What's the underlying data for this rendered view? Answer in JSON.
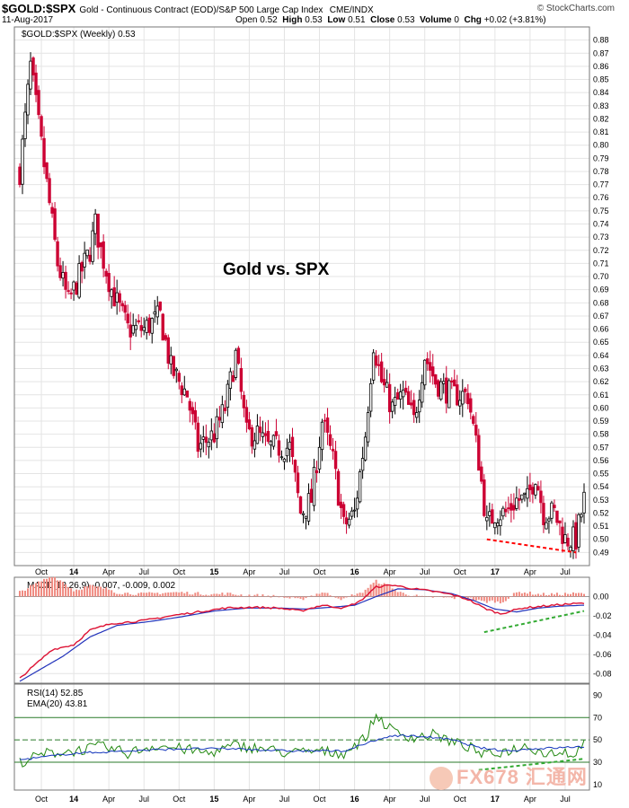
{
  "header": {
    "symbol": "$GOLD:$SPX",
    "description": "Gold - Continuous Contract (EOD)/S&P 500 Large Cap Index",
    "exchange": "CME/INDX",
    "date": "11-Aug-2017",
    "open_label": "Open",
    "open": "0.52",
    "high_label": "High",
    "high": "0.53",
    "low_label": "Low",
    "low": "0.51",
    "close_label": "Close",
    "close": "0.53",
    "volume_label": "Volume",
    "volume": "0",
    "chg_label": "Chg",
    "chg": "+0.02 (+3.81%)",
    "credit": "© StockCharts.com"
  },
  "watermark": "FX678 汇通网",
  "colors": {
    "up": "#000000",
    "down": "#cc0033",
    "macd_line": "#2233bb",
    "signal_line": "#dd1133",
    "rsi": "#228811",
    "ema": "#1133bb",
    "trend_red": "#ff0000",
    "trend_green": "#33aa33"
  },
  "chart_data": [
    {
      "type": "candlestick",
      "legend": "$GOLD:$SPX (Weekly) 0.53",
      "annotation": "Gold vs. SPX",
      "ylim": [
        0.48,
        0.89
      ],
      "yticks": [
        "0.88",
        "0.87",
        "0.86",
        "0.85",
        "0.84",
        "0.83",
        "0.82",
        "0.81",
        "0.80",
        "0.79",
        "0.78",
        "0.77",
        "0.76",
        "0.75",
        "0.74",
        "0.73",
        "0.72",
        "0.71",
        "0.70",
        "0.69",
        "0.68",
        "0.67",
        "0.66",
        "0.65",
        "0.64",
        "0.63",
        "0.62",
        "0.61",
        "0.60",
        "0.59",
        "0.58",
        "0.57",
        "0.56",
        "0.55",
        "0.54",
        "0.53",
        "0.52",
        "0.51",
        "0.50",
        "0.49"
      ],
      "x_labels": [
        "Oct",
        "14",
        "Apr",
        "Jul",
        "Oct",
        "15",
        "Apr",
        "Jul",
        "Oct",
        "16",
        "Apr",
        "Jul",
        "Oct",
        "17",
        "Apr",
        "Jul"
      ],
      "x_label_weeks": [
        8,
        20,
        33,
        46,
        59,
        72,
        85,
        98,
        111,
        124,
        137,
        150,
        163,
        176,
        189,
        202
      ],
      "weeks": 210,
      "anchors": [
        [
          0,
          0.78
        ],
        [
          4,
          0.86
        ],
        [
          6,
          0.83
        ],
        [
          10,
          0.77
        ],
        [
          14,
          0.71
        ],
        [
          18,
          0.68
        ],
        [
          22,
          0.7
        ],
        [
          26,
          0.72
        ],
        [
          28,
          0.74
        ],
        [
          30,
          0.72
        ],
        [
          34,
          0.69
        ],
        [
          40,
          0.66
        ],
        [
          46,
          0.66
        ],
        [
          52,
          0.67
        ],
        [
          56,
          0.63
        ],
        [
          62,
          0.61
        ],
        [
          66,
          0.57
        ],
        [
          72,
          0.58
        ],
        [
          76,
          0.6
        ],
        [
          80,
          0.64
        ],
        [
          84,
          0.58
        ],
        [
          88,
          0.58
        ],
        [
          92,
          0.57
        ],
        [
          100,
          0.57
        ],
        [
          104,
          0.52
        ],
        [
          108,
          0.53
        ],
        [
          112,
          0.59
        ],
        [
          116,
          0.56
        ],
        [
          120,
          0.51
        ],
        [
          124,
          0.52
        ],
        [
          128,
          0.58
        ],
        [
          131,
          0.65
        ],
        [
          134,
          0.62
        ],
        [
          138,
          0.6
        ],
        [
          142,
          0.61
        ],
        [
          146,
          0.59
        ],
        [
          150,
          0.64
        ],
        [
          154,
          0.62
        ],
        [
          160,
          0.61
        ],
        [
          166,
          0.61
        ],
        [
          170,
          0.56
        ],
        [
          173,
          0.51
        ],
        [
          176,
          0.52
        ],
        [
          180,
          0.52
        ],
        [
          184,
          0.53
        ],
        [
          188,
          0.53
        ],
        [
          191,
          0.55
        ],
        [
          194,
          0.52
        ],
        [
          198,
          0.52
        ],
        [
          202,
          0.5
        ],
        [
          206,
          0.5
        ],
        [
          209,
          0.53
        ]
      ],
      "trendline_red": [
        [
          173,
          0.5
        ],
        [
          206,
          0.49
        ]
      ]
    },
    {
      "type": "line",
      "legend": "MACD(12,26,9) -0.007, -0.009, 0.002",
      "ylim": [
        -0.09,
        0.02
      ],
      "yticks": [
        "0.00",
        "-0.02",
        "-0.04",
        "-0.06",
        "-0.08"
      ],
      "macd_anchors": [
        [
          0,
          -0.085
        ],
        [
          6,
          -0.07
        ],
        [
          12,
          -0.055
        ],
        [
          20,
          -0.05
        ],
        [
          26,
          -0.035
        ],
        [
          34,
          -0.028
        ],
        [
          46,
          -0.025
        ],
        [
          56,
          -0.02
        ],
        [
          66,
          -0.016
        ],
        [
          76,
          -0.012
        ],
        [
          86,
          -0.011
        ],
        [
          96,
          -0.012
        ],
        [
          104,
          -0.015
        ],
        [
          112,
          -0.009
        ],
        [
          120,
          -0.012
        ],
        [
          126,
          -0.005
        ],
        [
          132,
          0.01
        ],
        [
          138,
          0.012
        ],
        [
          146,
          0.008
        ],
        [
          154,
          0.005
        ],
        [
          160,
          0.002
        ],
        [
          166,
          -0.003
        ],
        [
          172,
          -0.012
        ],
        [
          178,
          -0.018
        ],
        [
          186,
          -0.012
        ],
        [
          194,
          -0.01
        ],
        [
          202,
          -0.008
        ],
        [
          209,
          -0.007
        ]
      ],
      "signal_anchors": [
        [
          0,
          -0.088
        ],
        [
          8,
          -0.075
        ],
        [
          16,
          -0.062
        ],
        [
          26,
          -0.042
        ],
        [
          36,
          -0.03
        ],
        [
          48,
          -0.026
        ],
        [
          60,
          -0.021
        ],
        [
          72,
          -0.015
        ],
        [
          84,
          -0.012
        ],
        [
          96,
          -0.012
        ],
        [
          106,
          -0.013
        ],
        [
          116,
          -0.011
        ],
        [
          124,
          -0.009
        ],
        [
          132,
          0.0
        ],
        [
          140,
          0.008
        ],
        [
          150,
          0.007
        ],
        [
          160,
          0.003
        ],
        [
          168,
          -0.004
        ],
        [
          176,
          -0.013
        ],
        [
          184,
          -0.016
        ],
        [
          192,
          -0.012
        ],
        [
          200,
          -0.01
        ],
        [
          209,
          -0.009
        ]
      ],
      "trendline_green": [
        [
          172,
          -0.037
        ],
        [
          209,
          -0.015
        ]
      ]
    },
    {
      "type": "line",
      "legend_rsi": "RSI(14) 52.85",
      "legend_ema": "EMA(20) 43.81",
      "ylim": [
        5,
        100
      ],
      "yticks": [
        "90",
        "70",
        "50",
        "30",
        "10"
      ],
      "levels": [
        70,
        50,
        30
      ],
      "rsi_anchors": [
        [
          0,
          30
        ],
        [
          10,
          38
        ],
        [
          20,
          40
        ],
        [
          30,
          44
        ],
        [
          40,
          38
        ],
        [
          50,
          45
        ],
        [
          60,
          42
        ],
        [
          70,
          38
        ],
        [
          80,
          45
        ],
        [
          90,
          42
        ],
        [
          100,
          38
        ],
        [
          110,
          40
        ],
        [
          120,
          38
        ],
        [
          128,
          52
        ],
        [
          132,
          72
        ],
        [
          138,
          58
        ],
        [
          146,
          52
        ],
        [
          154,
          55
        ],
        [
          160,
          48
        ],
        [
          166,
          44
        ],
        [
          172,
          36
        ],
        [
          180,
          40
        ],
        [
          188,
          45
        ],
        [
          194,
          38
        ],
        [
          202,
          40
        ],
        [
          206,
          35
        ],
        [
          209,
          53
        ]
      ],
      "ema_anchors": [
        [
          0,
          32
        ],
        [
          20,
          38
        ],
        [
          40,
          40
        ],
        [
          60,
          42
        ],
        [
          80,
          42
        ],
        [
          100,
          40
        ],
        [
          120,
          40
        ],
        [
          130,
          48
        ],
        [
          138,
          54
        ],
        [
          150,
          53
        ],
        [
          160,
          50
        ],
        [
          170,
          43
        ],
        [
          180,
          40
        ],
        [
          190,
          42
        ],
        [
          200,
          43
        ],
        [
          209,
          44
        ]
      ],
      "trendline_green": [
        [
          170,
          23
        ],
        [
          209,
          33
        ]
      ]
    }
  ]
}
